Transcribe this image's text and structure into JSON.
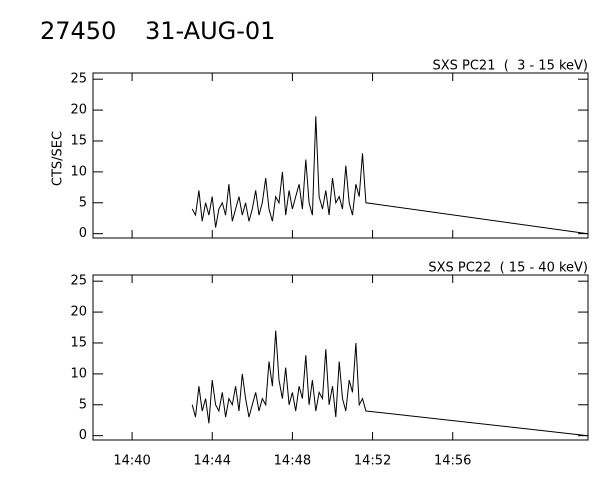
{
  "chart_data": [
    {
      "type": "line",
      "title": "27450",
      "subtitle": "31-AUG-01",
      "label": "SXS PC21  (  3 - 15 keV)",
      "ylabel": "CTS/SEC",
      "color": "#000000",
      "x": [
        "14:43:00",
        "14:43:10",
        "14:43:20",
        "14:43:30",
        "14:43:40",
        "14:43:50",
        "14:44:00",
        "14:44:10",
        "14:44:20",
        "14:44:30",
        "14:44:40",
        "14:44:50",
        "14:45:00",
        "14:45:10",
        "14:45:20",
        "14:45:30",
        "14:45:40",
        "14:45:50",
        "14:46:00",
        "14:46:10",
        "14:46:20",
        "14:46:30",
        "14:46:40",
        "14:46:50",
        "14:47:00",
        "14:47:10",
        "14:47:20",
        "14:47:30",
        "14:47:40",
        "14:47:50",
        "14:48:00",
        "14:48:10",
        "14:48:20",
        "14:48:30",
        "14:48:40",
        "14:48:50",
        "14:49:00",
        "14:49:10",
        "14:49:20",
        "14:49:30",
        "14:49:40",
        "14:49:50",
        "14:50:00",
        "14:50:10",
        "14:50:20",
        "14:50:30",
        "14:50:40",
        "14:50:50",
        "14:51:00",
        "14:51:10",
        "14:51:20",
        "14:51:30",
        "14:51:40",
        "15:02:45"
      ],
      "values": [
        4,
        3,
        7,
        2,
        5,
        3,
        6,
        1,
        4,
        5,
        3,
        8,
        2,
        4,
        6,
        3,
        5,
        2,
        4,
        7,
        3,
        5,
        9,
        4,
        2,
        6,
        5,
        10,
        3,
        7,
        4,
        6,
        8,
        4,
        12,
        5,
        3,
        19,
        6,
        4,
        7,
        3,
        9,
        5,
        6,
        4,
        11,
        5,
        3,
        8,
        6,
        13,
        5,
        0
      ],
      "xlim": [
        "14:38:03",
        "15:02:45"
      ],
      "ylim": [
        -0.7,
        26
      ],
      "yticks": [
        0,
        5,
        10,
        15,
        20,
        25
      ]
    },
    {
      "type": "line",
      "label": "SXS PC22  ( 15 - 40 keV)",
      "color": "#000000",
      "x": [
        "14:43:00",
        "14:43:10",
        "14:43:20",
        "14:43:30",
        "14:43:40",
        "14:43:50",
        "14:44:00",
        "14:44:10",
        "14:44:20",
        "14:44:30",
        "14:44:40",
        "14:44:50",
        "14:45:00",
        "14:45:10",
        "14:45:20",
        "14:45:30",
        "14:45:40",
        "14:45:50",
        "14:46:00",
        "14:46:10",
        "14:46:20",
        "14:46:30",
        "14:46:40",
        "14:46:50",
        "14:47:00",
        "14:47:10",
        "14:47:20",
        "14:47:30",
        "14:47:40",
        "14:47:50",
        "14:48:00",
        "14:48:10",
        "14:48:20",
        "14:48:30",
        "14:48:40",
        "14:48:50",
        "14:49:00",
        "14:49:10",
        "14:49:20",
        "14:49:30",
        "14:49:40",
        "14:49:50",
        "14:50:00",
        "14:50:10",
        "14:50:20",
        "14:50:30",
        "14:50:40",
        "14:50:50",
        "14:51:00",
        "14:51:10",
        "14:51:20",
        "14:51:30",
        "14:51:40",
        "15:02:45"
      ],
      "values": [
        5,
        3,
        8,
        4,
        6,
        2,
        9,
        5,
        4,
        7,
        3,
        6,
        5,
        8,
        4,
        10,
        6,
        3,
        5,
        7,
        4,
        6,
        5,
        12,
        8,
        17,
        9,
        6,
        11,
        5,
        7,
        4,
        8,
        6,
        13,
        5,
        9,
        4,
        7,
        6,
        14,
        5,
        8,
        3,
        12,
        6,
        4,
        9,
        7,
        15,
        5,
        6,
        4,
        0
      ],
      "xlim": [
        "14:38:03",
        "15:02:45"
      ],
      "ylim": [
        -0.7,
        26
      ],
      "yticks": [
        0,
        5,
        10,
        15,
        20,
        25
      ],
      "xticks": [
        "14:40",
        "14:44",
        "14:48",
        "14:52",
        "14:56"
      ]
    }
  ]
}
